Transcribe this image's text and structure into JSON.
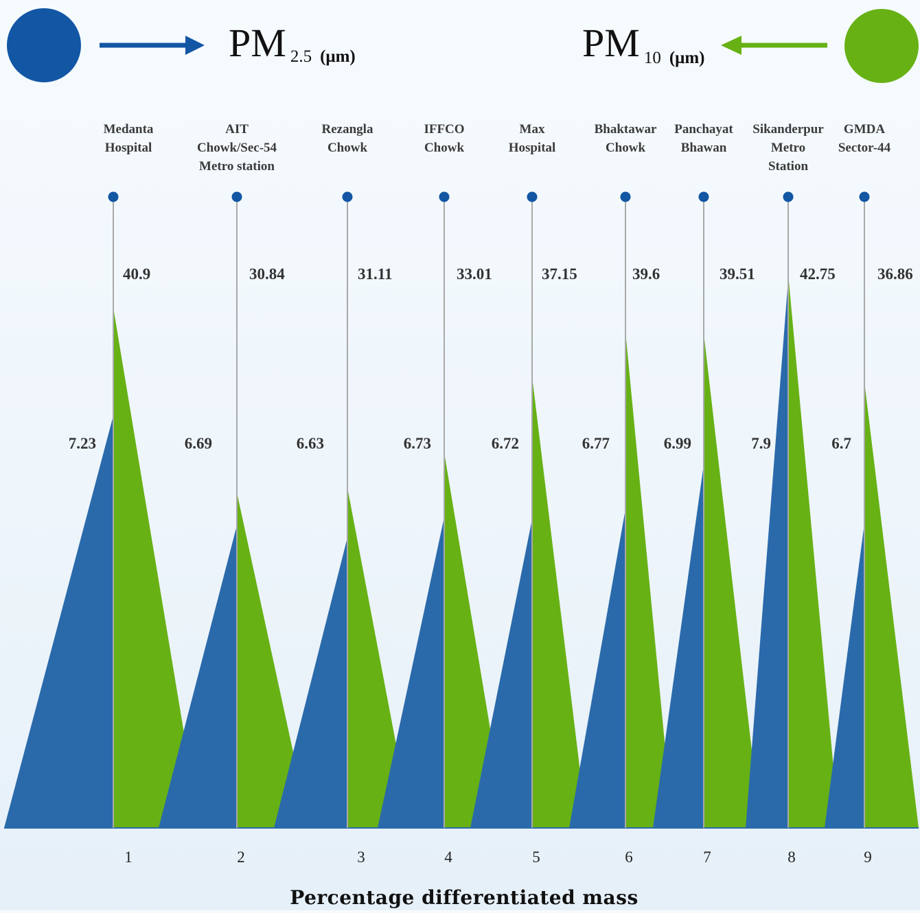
{
  "colors": {
    "pm25": "#2a6aab",
    "pm25_legend": "#1256a4",
    "pm10": "#67b115",
    "stem": "#a9a9a9",
    "baseline": "#2a6aab"
  },
  "legend": {
    "pm25": {
      "main": "PM",
      "sub": "2.5",
      "unit": "(μm)",
      "icon": "arrow-right-icon"
    },
    "pm10": {
      "main": "PM",
      "sub": "10",
      "unit": "(μm)",
      "icon": "arrow-left-icon"
    }
  },
  "chart_data": {
    "type": "area",
    "categories": [
      "1",
      "2",
      "3",
      "4",
      "5",
      "6",
      "7",
      "8",
      "9"
    ],
    "locations": [
      [
        "Medanta",
        "Hospital"
      ],
      [
        "AIT",
        "Chowk/Sec-54",
        "Metro station"
      ],
      [
        "Rezangla",
        "Chowk"
      ],
      [
        "IFFCO",
        "Chowk"
      ],
      [
        "Max",
        "Hospital"
      ],
      [
        "Bhaktawar",
        "Chowk"
      ],
      [
        "Panchayat",
        "Bhawan"
      ],
      [
        "Sikanderpur",
        "Metro",
        "Station"
      ],
      [
        "GMDA",
        "Sector-44"
      ]
    ],
    "series": [
      {
        "name": "PM2.5 (μm)",
        "values": [
          7.23,
          6.69,
          6.63,
          6.73,
          6.72,
          6.77,
          6.99,
          7.9,
          6.7
        ]
      },
      {
        "name": "PM10 (μm)",
        "values": [
          40.9,
          30.84,
          31.11,
          33.01,
          37.15,
          39.6,
          39.51,
          42.75,
          36.86
        ]
      }
    ],
    "xlabel": "Percentage differentiated mass",
    "legend_position": "top"
  }
}
